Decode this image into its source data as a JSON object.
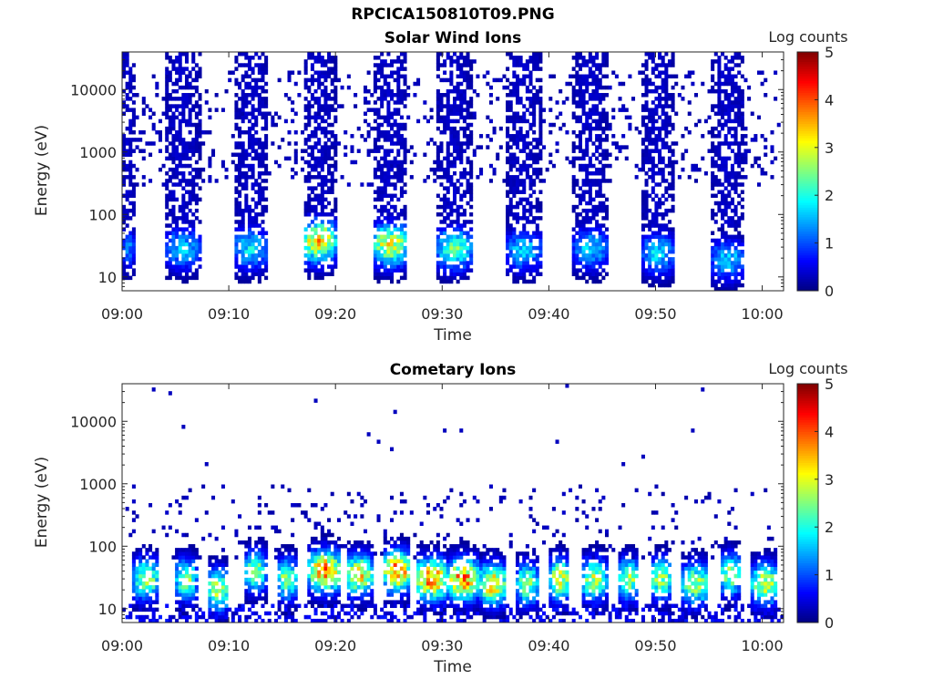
{
  "figure": {
    "title": "RPCICA150810T09.PNG"
  },
  "chart_data": [
    {
      "type": "heatmap",
      "title": "Solar Wind Ions",
      "xlabel": "Time",
      "ylabel": "Energy (eV)",
      "yscale": "log",
      "ylim": [
        6,
        40000
      ],
      "xlim": [
        "09:00",
        "10:02"
      ],
      "x_ticks": [
        "09:00",
        "09:10",
        "09:20",
        "09:30",
        "09:40",
        "09:50",
        "10:00"
      ],
      "y_ticks": [
        "10",
        "100",
        "1000",
        "10000"
      ],
      "colorbar": {
        "label": "Log counts",
        "range": [
          0,
          5
        ],
        "ticks": [
          "0",
          "1",
          "2",
          "3",
          "4",
          "5"
        ],
        "colormap": "jet"
      },
      "background_noise": {
        "t_start_min": 0,
        "t_end_min": 61.5,
        "e_min_ev": 300,
        "e_max_ev": 20000,
        "level": 0.3
      },
      "bursts": [
        {
          "start_min": 0.0,
          "end_min": 1.2,
          "peak_ev": 30,
          "peak_level": 1.2
        },
        {
          "start_min": 4.0,
          "end_min": 7.3,
          "peak_ev": 30,
          "peak_level": 1.6
        },
        {
          "start_min": 10.5,
          "end_min": 13.7,
          "peak_ev": 30,
          "peak_level": 1.8
        },
        {
          "start_min": 16.9,
          "end_min": 20.0,
          "peak_ev": 40,
          "peak_level": 3.3
        },
        {
          "start_min": 23.5,
          "end_min": 26.8,
          "peak_ev": 35,
          "peak_level": 3.0
        },
        {
          "start_min": 29.5,
          "end_min": 32.8,
          "peak_ev": 30,
          "peak_level": 2.3
        },
        {
          "start_min": 36.0,
          "end_min": 39.3,
          "peak_ev": 28,
          "peak_level": 1.6
        },
        {
          "start_min": 42.3,
          "end_min": 45.5,
          "peak_ev": 30,
          "peak_level": 1.6
        },
        {
          "start_min": 48.7,
          "end_min": 51.7,
          "peak_ev": 25,
          "peak_level": 1.7
        },
        {
          "start_min": 55.2,
          "end_min": 58.3,
          "peak_ev": 20,
          "peak_level": 1.6
        }
      ]
    },
    {
      "type": "heatmap",
      "title": "Cometary Ions",
      "xlabel": "Time",
      "ylabel": "Energy (eV)",
      "yscale": "log",
      "ylim": [
        6,
        40000
      ],
      "xlim": [
        "09:00",
        "10:02"
      ],
      "x_ticks": [
        "09:00",
        "09:10",
        "09:20",
        "09:30",
        "09:40",
        "09:50",
        "10:00"
      ],
      "y_ticks": [
        "10",
        "100",
        "1000",
        "10000"
      ],
      "colorbar": {
        "label": "Log counts",
        "range": [
          0,
          5
        ],
        "ticks": [
          "0",
          "1",
          "2",
          "3",
          "4",
          "5"
        ],
        "colormap": "jet"
      },
      "background_noise": {
        "t_start_min": 0,
        "t_end_min": 61.5,
        "e_min_ev": 60,
        "e_max_ev": 1000,
        "level": 0.3
      },
      "low_energy_band": {
        "e_min_ev": 6,
        "e_max_ev": 12,
        "level": 0.5
      },
      "bursts": [
        {
          "start_min": 1.0,
          "end_min": 3.5,
          "peak_ev": 30,
          "peak_level": 2.6
        },
        {
          "start_min": 5.0,
          "end_min": 7.0,
          "peak_ev": 30,
          "peak_level": 2.5
        },
        {
          "start_min": 8.0,
          "end_min": 10.0,
          "peak_ev": 20,
          "peak_level": 3.0
        },
        {
          "start_min": 11.5,
          "end_min": 13.5,
          "peak_ev": 40,
          "peak_level": 2.5
        },
        {
          "start_min": 14.5,
          "end_min": 16.5,
          "peak_ev": 30,
          "peak_level": 2.6
        },
        {
          "start_min": 17.5,
          "end_min": 20.5,
          "peak_ev": 40,
          "peak_level": 3.7
        },
        {
          "start_min": 21.0,
          "end_min": 23.5,
          "peak_ev": 35,
          "peak_level": 3.2
        },
        {
          "start_min": 24.5,
          "end_min": 27.0,
          "peak_ev": 40,
          "peak_level": 3.8
        },
        {
          "start_min": 27.5,
          "end_min": 30.5,
          "peak_ev": 30,
          "peak_level": 3.7
        },
        {
          "start_min": 30.5,
          "end_min": 33.5,
          "peak_ev": 30,
          "peak_level": 3.6
        },
        {
          "start_min": 33.5,
          "end_min": 36.0,
          "peak_ev": 25,
          "peak_level": 3.3
        },
        {
          "start_min": 37.0,
          "end_min": 39.0,
          "peak_ev": 25,
          "peak_level": 2.6
        },
        {
          "start_min": 40.0,
          "end_min": 42.0,
          "peak_ev": 30,
          "peak_level": 3.0
        },
        {
          "start_min": 43.0,
          "end_min": 45.5,
          "peak_ev": 30,
          "peak_level": 2.7
        },
        {
          "start_min": 46.5,
          "end_min": 48.5,
          "peak_ev": 30,
          "peak_level": 2.6
        },
        {
          "start_min": 49.5,
          "end_min": 51.5,
          "peak_ev": 30,
          "peak_level": 2.6
        },
        {
          "start_min": 52.5,
          "end_min": 55.0,
          "peak_ev": 25,
          "peak_level": 2.7
        },
        {
          "start_min": 56.0,
          "end_min": 58.0,
          "peak_ev": 35,
          "peak_level": 2.6
        },
        {
          "start_min": 59.0,
          "end_min": 61.5,
          "peak_ev": 25,
          "peak_level": 2.9
        }
      ]
    }
  ]
}
